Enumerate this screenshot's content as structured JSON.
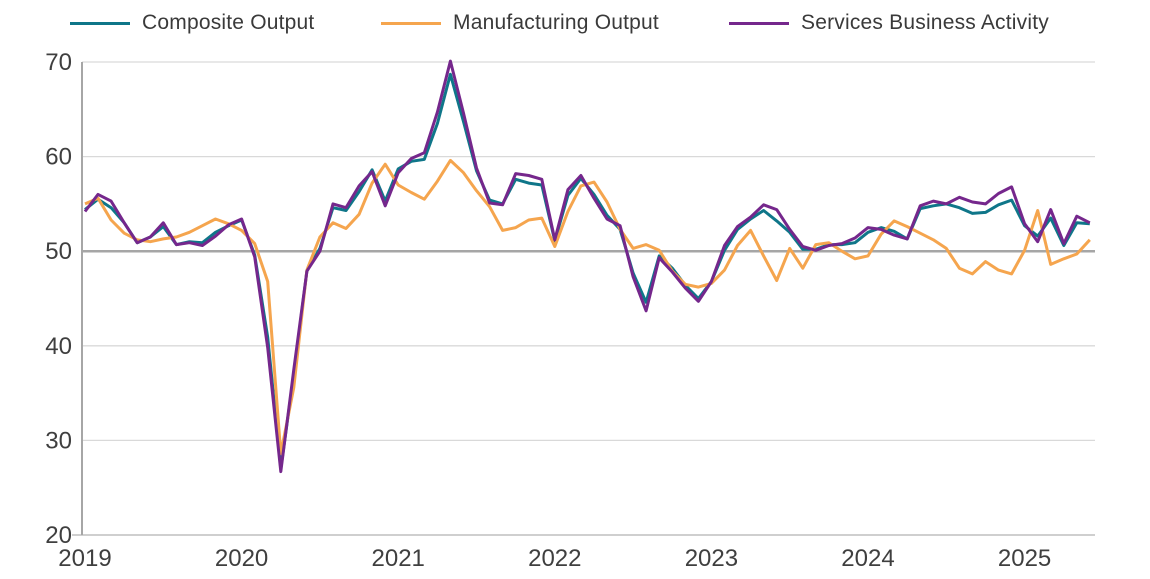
{
  "chart_data": {
    "type": "line",
    "title": "",
    "x_unit": "month",
    "x_start": "2019-01",
    "x_end": "2025-06",
    "x_tick_labels": [
      "2019",
      "2020",
      "2021",
      "2022",
      "2023",
      "2024",
      "2025"
    ],
    "y_ticks": [
      20,
      30,
      40,
      50,
      60,
      70
    ],
    "ylim": [
      20,
      70
    ],
    "reference_line": 50,
    "grid": "horizontal",
    "legend_position": "top",
    "grid_color": "#D9D9D9",
    "reference_line_color": "#A6A6A6",
    "axis_border_color": "#BFBFBF",
    "axis_text_color": "#3F3F3F",
    "series": [
      {
        "name": "Composite Output",
        "color": "#0F7689",
        "values": [
          54.4,
          55.5,
          54.6,
          53.0,
          50.9,
          51.5,
          52.6,
          50.7,
          51.0,
          50.9,
          52.0,
          52.7,
          53.3,
          49.6,
          40.9,
          27.0,
          37.0,
          47.9,
          50.3,
          54.6,
          54.3,
          56.3,
          58.6,
          55.3,
          58.7,
          59.5,
          59.7,
          63.5,
          68.7,
          63.7,
          58.5,
          55.4,
          55.0,
          57.6,
          57.2,
          57.0,
          51.1,
          55.9,
          57.7,
          56.0,
          53.8,
          52.3,
          47.7,
          44.6,
          49.5,
          48.2,
          46.4,
          45.0,
          46.8,
          50.1,
          52.3,
          53.4,
          54.3,
          53.2,
          52.0,
          50.2,
          50.2,
          50.7,
          50.7,
          50.9,
          52.0,
          52.5,
          52.1,
          51.3,
          54.5,
          54.8,
          55.0,
          54.6,
          54.0,
          54.1,
          54.9,
          55.4,
          52.7,
          51.6,
          53.5,
          50.6,
          53.0,
          52.9
        ]
      },
      {
        "name": "Manufacturing Output",
        "color": "#F5A54E",
        "values": [
          55.0,
          55.6,
          53.3,
          51.9,
          51.2,
          51.0,
          51.3,
          51.5,
          52.0,
          52.7,
          53.4,
          52.9,
          52.2,
          50.8,
          46.8,
          28.6,
          35.6,
          48.0,
          51.5,
          53.0,
          52.4,
          53.9,
          57.2,
          59.2,
          57.0,
          56.2,
          55.5,
          57.4,
          59.6,
          58.3,
          56.4,
          54.7,
          52.2,
          52.5,
          53.3,
          53.5,
          50.5,
          54.2,
          56.9,
          57.3,
          55.2,
          52.3,
          50.3,
          50.7,
          50.1,
          47.9,
          46.5,
          46.2,
          46.6,
          48.0,
          50.6,
          52.2,
          49.5,
          46.9,
          50.3,
          48.2,
          50.7,
          50.9,
          50.0,
          49.2,
          49.5,
          51.8,
          53.2,
          52.6,
          51.9,
          51.2,
          50.3,
          48.2,
          47.6,
          48.9,
          48.0,
          47.6,
          50.1,
          54.3,
          48.6,
          49.2,
          49.7,
          51.2
        ]
      },
      {
        "name": "Services Business Activity",
        "color": "#75278C",
        "values": [
          54.2,
          56.0,
          55.3,
          53.0,
          50.9,
          51.5,
          53.0,
          50.7,
          50.9,
          50.6,
          51.6,
          52.8,
          53.4,
          49.4,
          39.8,
          26.7,
          37.5,
          47.9,
          50.0,
          55.0,
          54.6,
          56.9,
          58.4,
          54.8,
          58.3,
          59.8,
          60.4,
          64.7,
          70.1,
          64.6,
          58.8,
          55.1,
          54.9,
          58.2,
          58.0,
          57.6,
          51.2,
          56.5,
          58.0,
          55.6,
          53.4,
          52.7,
          47.3,
          43.7,
          49.3,
          47.8,
          46.1,
          44.7,
          46.8,
          50.6,
          52.6,
          53.6,
          54.9,
          54.4,
          52.3,
          50.5,
          50.1,
          50.6,
          50.8,
          51.4,
          52.5,
          52.3,
          51.7,
          51.3,
          54.8,
          55.3,
          55.0,
          55.7,
          55.2,
          55.0,
          56.1,
          56.8,
          52.9,
          51.0,
          54.4,
          50.8,
          53.7,
          53.0
        ]
      }
    ]
  }
}
